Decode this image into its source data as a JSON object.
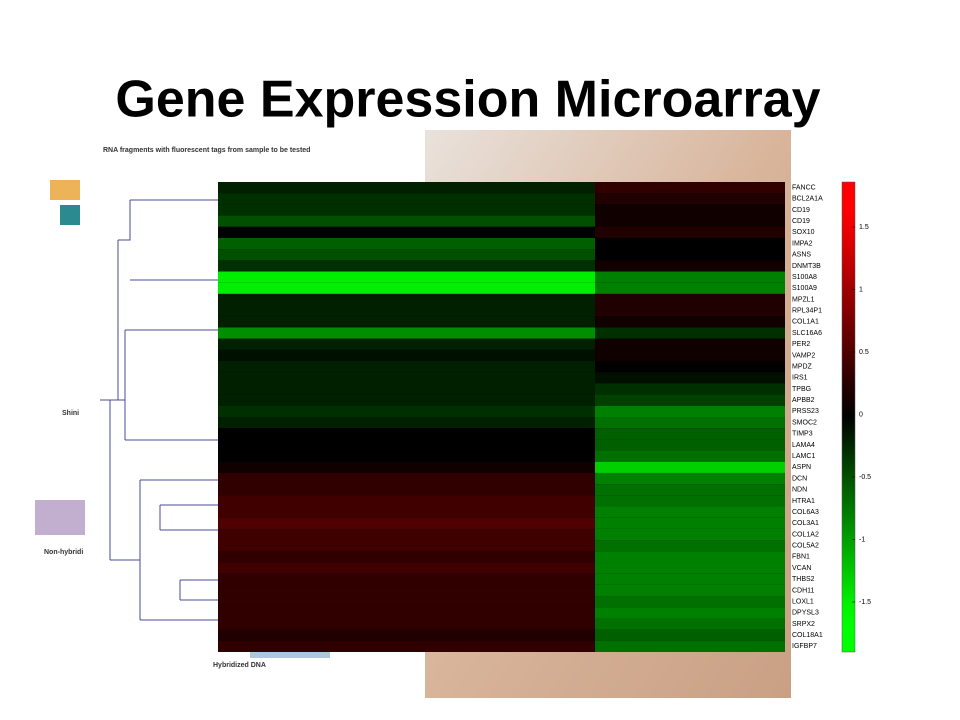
{
  "title": "Gene Expression Microarray",
  "background_labels": [
    "RNA fragments with fluorescent tags from sample to be tested",
    "Shini",
    "Non-hybridi",
    "Hybridized DNA"
  ],
  "chart_data": {
    "type": "heatmap",
    "rows": [
      "FANCC",
      "BCL2A1A",
      "CD19",
      "CD19",
      "SOX10",
      "IMPA2",
      "ASNS",
      "DNMT3B",
      "S100A8",
      "S100A9",
      "MPZL1",
      "RPL34P1",
      "COL1A1",
      "SLC16A6",
      "PER2",
      "VAMP2",
      "MPDZ",
      "IRS1",
      "TPBG",
      "APBB2",
      "PRSS23",
      "SMOC2",
      "TIMP3",
      "LAMA4",
      "LAMC1",
      "ASPN",
      "DCN",
      "NDN",
      "HTRA1",
      "COL6A3",
      "COL3A1",
      "COL1A2",
      "COL5A2",
      "FBN1",
      "VCAN",
      "THBS2",
      "CDH11",
      "LOXL1",
      "DPYSL3",
      "SRPX2",
      "COL18A1",
      "IGFBP7"
    ],
    "values": [
      [
        -0.2,
        0.3
      ],
      [
        -0.3,
        0.2
      ],
      [
        -0.3,
        0.1
      ],
      [
        -0.5,
        0.1
      ],
      [
        0,
        0.2
      ],
      [
        -0.6,
        0
      ],
      [
        -0.5,
        0
      ],
      [
        -0.3,
        0.1
      ],
      [
        -1.5,
        -0.8
      ],
      [
        -1.5,
        -0.8
      ],
      [
        -0.2,
        0.2
      ],
      [
        -0.2,
        0.2
      ],
      [
        -0.2,
        0.1
      ],
      [
        -0.9,
        -0.3
      ],
      [
        -0.2,
        0.1
      ],
      [
        -0.1,
        0.1
      ],
      [
        -0.2,
        0
      ],
      [
        -0.2,
        -0.1
      ],
      [
        -0.2,
        -0.3
      ],
      [
        -0.2,
        -0.4
      ],
      [
        -0.3,
        -0.8
      ],
      [
        -0.2,
        -0.7
      ],
      [
        0,
        -0.6
      ],
      [
        0,
        -0.6
      ],
      [
        0,
        -0.7
      ],
      [
        0.1,
        -1.3
      ],
      [
        0.3,
        -0.8
      ],
      [
        0.3,
        -0.7
      ],
      [
        0.4,
        -0.7
      ],
      [
        0.4,
        -0.8
      ],
      [
        0.5,
        -0.8
      ],
      [
        0.4,
        -0.8
      ],
      [
        0.4,
        -0.7
      ],
      [
        0.3,
        -0.8
      ],
      [
        0.4,
        -0.8
      ],
      [
        0.3,
        -0.8
      ],
      [
        0.3,
        -0.8
      ],
      [
        0.3,
        -0.7
      ],
      [
        0.3,
        -0.8
      ],
      [
        0.3,
        -0.7
      ],
      [
        0.2,
        -0.6
      ],
      [
        0.3,
        -0.7
      ]
    ],
    "colorbar_lim": [
      -1.9,
      1.86
    ],
    "colorbar_ticks": [
      1.5,
      1,
      0.5,
      0,
      -0.5,
      -1,
      -1.5
    ]
  }
}
